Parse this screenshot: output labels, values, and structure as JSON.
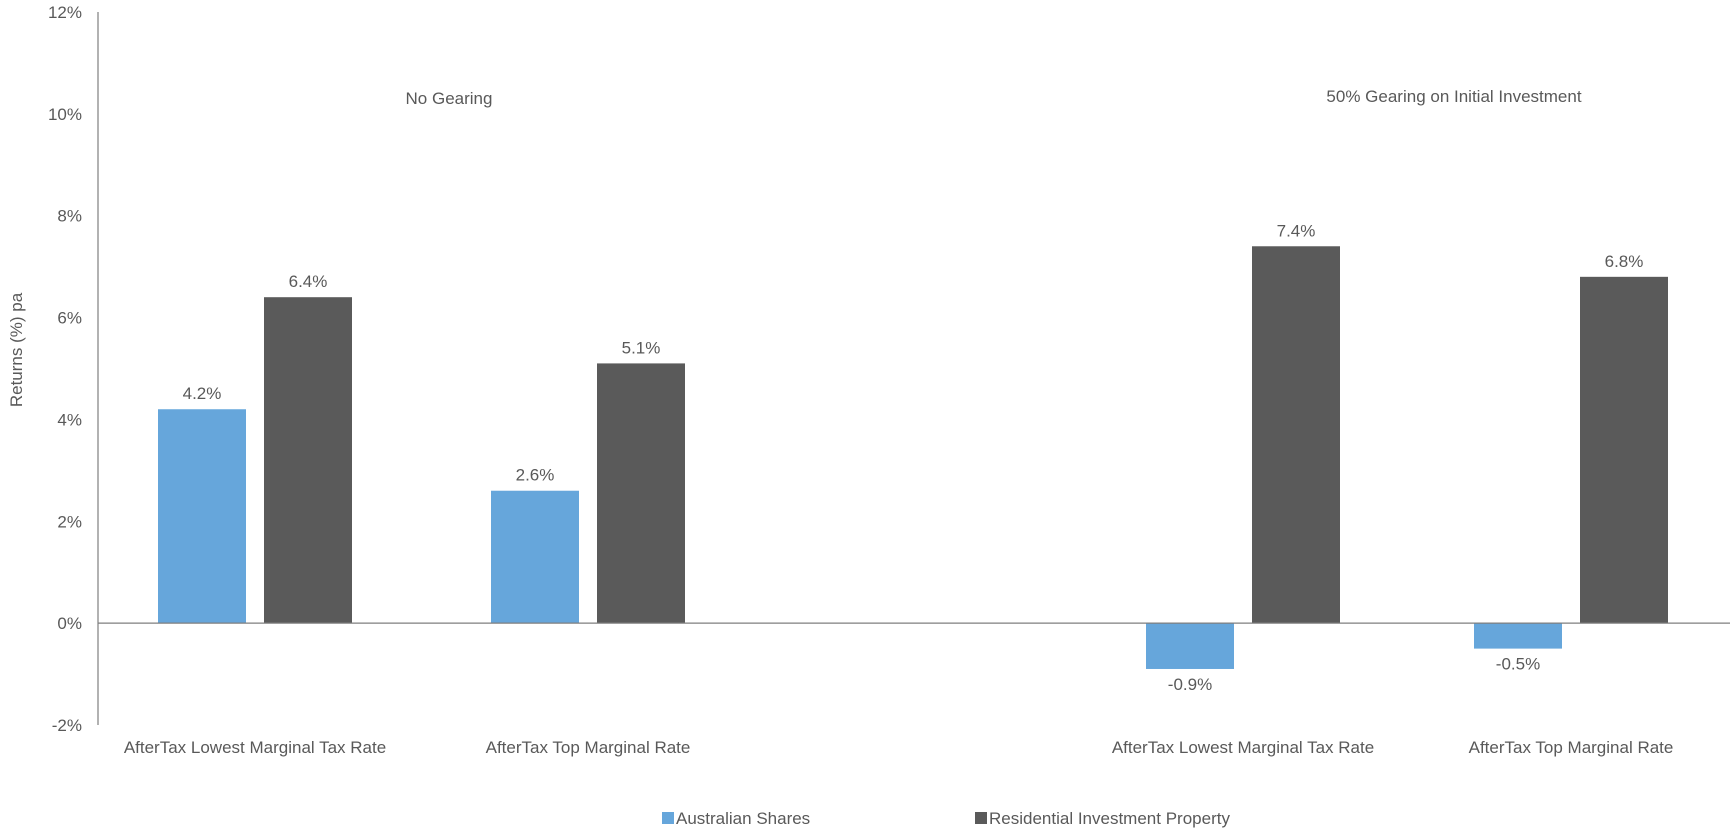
{
  "chart_data": {
    "type": "bar",
    "categories": [
      "AfterTax Lowest Marginal Tax Rate",
      "AfterTax Top Marginal Rate",
      "",
      "AfterTax Lowest Marginal Tax Rate",
      "AfterTax Top Marginal Rate"
    ],
    "series": [
      {
        "name": "Australian Shares",
        "values": [
          4.2,
          2.6,
          null,
          -0.9,
          -0.5
        ],
        "labels": [
          "4.2%",
          "2.6%",
          "",
          "-0.9%",
          "-0.5%"
        ],
        "color": "#66A6DB"
      },
      {
        "name": "Residential Investment Property",
        "values": [
          6.4,
          5.1,
          null,
          7.4,
          6.8
        ],
        "labels": [
          "6.4%",
          "5.1%",
          "",
          "7.4%",
          "6.8%"
        ],
        "color": "#5A5A5A"
      }
    ],
    "ylabel": "Returns (%) pa",
    "ylim": [
      -2,
      12
    ],
    "y_ticks": [
      -2,
      0,
      2,
      4,
      6,
      8,
      10,
      12
    ],
    "y_tick_labels": [
      "-2%",
      "0%",
      "2%",
      "4%",
      "6%",
      "8%",
      "10%",
      "12%"
    ],
    "annotations": [
      "No Gearing",
      "50% Gearing on Initial Investment"
    ],
    "legend_position": "bottom-center",
    "grid": false,
    "axis_color": "#7F7F7F",
    "text_color": "#595959"
  }
}
